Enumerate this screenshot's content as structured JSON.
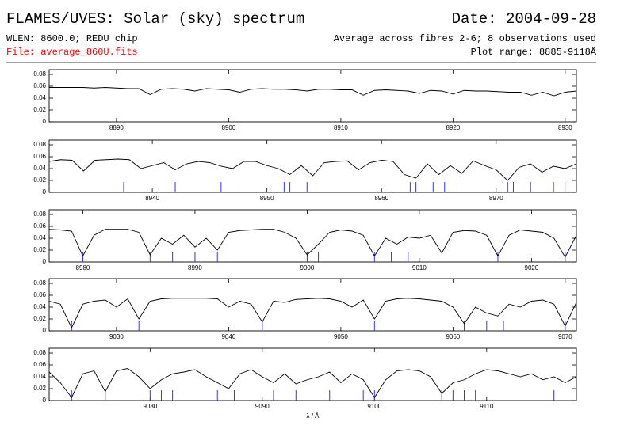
{
  "header": {
    "title": "FLAMES/UVES: Solar (sky) spectrum",
    "date": "Date: 2004-09-28",
    "wlen": "WLEN: 8600.0; REDU chip",
    "fibres": "Average across fibres 2-6; 8 observations used",
    "file": "File: average_860U.fits",
    "range": "Plot range: 8885-9118Å"
  },
  "chart_data": [
    {
      "type": "line",
      "color": "#000000",
      "ylim": [
        0,
        0.088
      ],
      "yticks": [
        0,
        0.02,
        0.04,
        0.06,
        0.08
      ],
      "xlim": [
        8884,
        8931
      ],
      "xticks": [
        8890,
        8900,
        8910,
        8920,
        8930
      ],
      "x": [
        8884,
        8885,
        8886,
        8887,
        8888,
        8889,
        8890,
        8891,
        8892,
        8893,
        8894,
        8895,
        8896,
        8897,
        8898,
        8899,
        8900,
        8901,
        8902,
        8903,
        8904,
        8905,
        8906,
        8907,
        8908,
        8909,
        8910,
        8911,
        8912,
        8913,
        8914,
        8915,
        8916,
        8917,
        8918,
        8919,
        8920,
        8921,
        8922,
        8923,
        8924,
        8925,
        8926,
        8927,
        8928,
        8929,
        8930,
        8931
      ],
      "values": [
        0.058,
        0.058,
        0.058,
        0.058,
        0.057,
        0.058,
        0.057,
        0.056,
        0.056,
        0.046,
        0.055,
        0.056,
        0.055,
        0.052,
        0.056,
        0.055,
        0.054,
        0.05,
        0.055,
        0.056,
        0.055,
        0.055,
        0.054,
        0.052,
        0.055,
        0.055,
        0.054,
        0.054,
        0.045,
        0.053,
        0.054,
        0.053,
        0.052,
        0.048,
        0.053,
        0.052,
        0.047,
        0.053,
        0.052,
        0.052,
        0.051,
        0.05,
        0.05,
        0.045,
        0.05,
        0.044,
        0.05,
        0.052
      ],
      "markers": {
        "color": "#3333ff",
        "x": []
      }
    },
    {
      "type": "line",
      "color": "#000000",
      "ylim": [
        0,
        0.088
      ],
      "yticks": [
        0,
        0.02,
        0.04,
        0.06,
        0.08
      ],
      "xlim": [
        8931,
        8977
      ],
      "xticks": [
        8940,
        8950,
        8960,
        8970
      ],
      "x": [
        8931,
        8932,
        8933,
        8934,
        8935,
        8936,
        8937,
        8938,
        8939,
        8940,
        8941,
        8942,
        8943,
        8944,
        8945,
        8946,
        8947,
        8948,
        8949,
        8950,
        8951,
        8952,
        8953,
        8954,
        8955,
        8956,
        8957,
        8958,
        8959,
        8960,
        8961,
        8962,
        8963,
        8964,
        8965,
        8966,
        8967,
        8968,
        8969,
        8970,
        8971,
        8972,
        8973,
        8974,
        8975,
        8976,
        8977
      ],
      "values": [
        0.052,
        0.055,
        0.054,
        0.036,
        0.054,
        0.055,
        0.056,
        0.055,
        0.04,
        0.045,
        0.05,
        0.038,
        0.048,
        0.052,
        0.05,
        0.044,
        0.04,
        0.052,
        0.052,
        0.045,
        0.04,
        0.03,
        0.045,
        0.028,
        0.05,
        0.052,
        0.053,
        0.038,
        0.05,
        0.054,
        0.052,
        0.03,
        0.024,
        0.048,
        0.03,
        0.045,
        0.032,
        0.053,
        0.045,
        0.038,
        0.02,
        0.042,
        0.048,
        0.034,
        0.044,
        0.04,
        0.048
      ],
      "markers": {
        "color": "#3333ff",
        "x": [
          8937.5,
          8942,
          8946,
          8951.5,
          8952,
          8953.5,
          8962.5,
          8963,
          8964.5,
          8965.5,
          8971,
          8971.5,
          8973,
          8975,
          8976
        ]
      }
    },
    {
      "type": "line",
      "color": "#000000",
      "ylim": [
        0,
        0.088
      ],
      "yticks": [
        0,
        0.02,
        0.04,
        0.06,
        0.08
      ],
      "xlim": [
        8977,
        9024
      ],
      "xticks": [
        8980,
        8990,
        9000,
        9010,
        9020
      ],
      "x": [
        8977,
        8978,
        8979,
        8980,
        8981,
        8982,
        8983,
        8984,
        8985,
        8986,
        8987,
        8988,
        8989,
        8990,
        8991,
        8992,
        8993,
        8994,
        8995,
        8996,
        8997,
        8998,
        8999,
        9000,
        9001,
        9002,
        9003,
        9004,
        9005,
        9006,
        9007,
        9008,
        9009,
        9010,
        9011,
        9012,
        9013,
        9014,
        9015,
        9016,
        9017,
        9018,
        9019,
        9020,
        9021,
        9022,
        9023,
        9024
      ],
      "values": [
        0.055,
        0.054,
        0.052,
        0.01,
        0.045,
        0.055,
        0.055,
        0.055,
        0.05,
        0.012,
        0.04,
        0.03,
        0.045,
        0.025,
        0.04,
        0.02,
        0.05,
        0.053,
        0.054,
        0.055,
        0.055,
        0.05,
        0.04,
        0.012,
        0.03,
        0.05,
        0.054,
        0.052,
        0.045,
        0.01,
        0.04,
        0.03,
        0.042,
        0.04,
        0.045,
        0.015,
        0.05,
        0.053,
        0.052,
        0.045,
        0.01,
        0.045,
        0.054,
        0.052,
        0.05,
        0.04,
        0.008,
        0.045
      ],
      "markers": {
        "color": "#3333ff",
        "x": [
          8980,
          8986,
          8988,
          8990,
          8992,
          9000,
          9001,
          9006,
          9007.5,
          9009,
          9017,
          9023
        ]
      }
    },
    {
      "type": "line",
      "color": "#000000",
      "ylim": [
        0,
        0.088
      ],
      "yticks": [
        0,
        0.02,
        0.04,
        0.06,
        0.08
      ],
      "xlim": [
        9024,
        9071
      ],
      "xticks": [
        9030,
        9040,
        9050,
        9060,
        9070
      ],
      "x": [
        9024,
        9025,
        9026,
        9027,
        9028,
        9029,
        9030,
        9031,
        9032,
        9033,
        9034,
        9035,
        9036,
        9037,
        9038,
        9039,
        9040,
        9041,
        9042,
        9043,
        9044,
        9045,
        9046,
        9047,
        9048,
        9049,
        9050,
        9051,
        9052,
        9053,
        9054,
        9055,
        9056,
        9057,
        9058,
        9059,
        9060,
        9061,
        9062,
        9063,
        9064,
        9065,
        9066,
        9067,
        9068,
        9069,
        9070,
        9071
      ],
      "values": [
        0.05,
        0.045,
        0.005,
        0.045,
        0.05,
        0.052,
        0.04,
        0.054,
        0.02,
        0.05,
        0.054,
        0.055,
        0.055,
        0.055,
        0.055,
        0.054,
        0.04,
        0.05,
        0.045,
        0.015,
        0.05,
        0.048,
        0.053,
        0.054,
        0.055,
        0.054,
        0.05,
        0.04,
        0.052,
        0.02,
        0.05,
        0.054,
        0.055,
        0.054,
        0.052,
        0.05,
        0.04,
        0.012,
        0.04,
        0.03,
        0.025,
        0.045,
        0.04,
        0.05,
        0.052,
        0.045,
        0.008,
        0.048
      ],
      "markers": {
        "color": "#3333ff",
        "x": [
          9026,
          9032,
          9043,
          9053,
          9061,
          9063,
          9064.5,
          9070
        ]
      }
    },
    {
      "type": "line",
      "color": "#000000",
      "ylim": [
        0,
        0.088
      ],
      "yticks": [
        0,
        0.02,
        0.04,
        0.06,
        0.08
      ],
      "xlim": [
        9071,
        9118
      ],
      "xticks": [
        9080,
        9090,
        9100,
        9110
      ],
      "xlabel": "λ / Å",
      "x": [
        9071,
        9072,
        9073,
        9074,
        9075,
        9076,
        9077,
        9078,
        9079,
        9080,
        9081,
        9082,
        9083,
        9084,
        9085,
        9086,
        9087,
        9088,
        9089,
        9090,
        9091,
        9092,
        9093,
        9094,
        9095,
        9096,
        9097,
        9098,
        9099,
        9100,
        9101,
        9102,
        9103,
        9104,
        9105,
        9106,
        9107,
        9108,
        9109,
        9110,
        9111,
        9112,
        9113,
        9114,
        9115,
        9116,
        9117,
        9118
      ],
      "values": [
        0.048,
        0.03,
        0.005,
        0.045,
        0.05,
        0.015,
        0.05,
        0.054,
        0.04,
        0.02,
        0.035,
        0.045,
        0.048,
        0.052,
        0.04,
        0.03,
        0.02,
        0.045,
        0.052,
        0.04,
        0.03,
        0.045,
        0.028,
        0.035,
        0.04,
        0.048,
        0.03,
        0.045,
        0.035,
        0.005,
        0.035,
        0.05,
        0.052,
        0.05,
        0.04,
        0.012,
        0.03,
        0.035,
        0.045,
        0.052,
        0.05,
        0.045,
        0.04,
        0.045,
        0.035,
        0.04,
        0.03,
        0.04
      ],
      "markers": {
        "color": "#3333ff",
        "x": [
          9073,
          9076,
          9080,
          9081,
          9082,
          9086,
          9087.5,
          9091,
          9093,
          9096,
          9099,
          9100,
          9106,
          9107,
          9108,
          9109,
          9116
        ]
      }
    }
  ]
}
